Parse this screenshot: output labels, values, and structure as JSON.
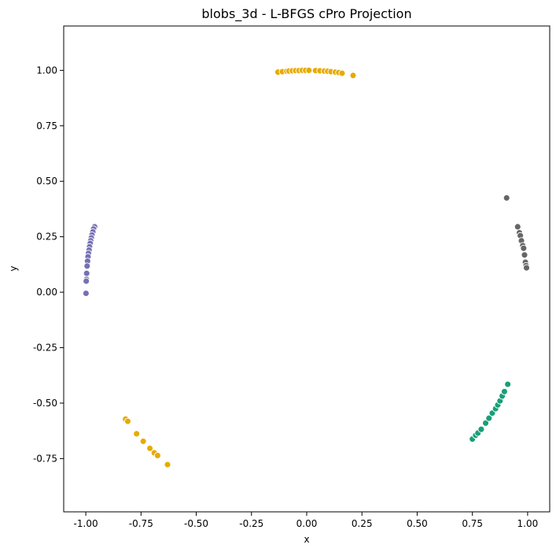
{
  "chart_data": {
    "type": "scatter",
    "title": "blobs_3d - L-BFGS cPro Projection",
    "xlabel": "x",
    "ylabel": "y",
    "xlim": [
      -1.1,
      1.1
    ],
    "ylim": [
      -0.99,
      1.2
    ],
    "xticks": [
      "-1.00",
      "-0.75",
      "-0.50",
      "-0.25",
      "0.00",
      "0.25",
      "0.50",
      "0.75",
      "1.00"
    ],
    "xtick_values": [
      -1.0,
      -0.75,
      -0.5,
      -0.25,
      0.0,
      0.25,
      0.5,
      0.75,
      1.0
    ],
    "yticks": [
      "-0.75",
      "-0.50",
      "-0.25",
      "0.00",
      "0.25",
      "0.50",
      "0.75",
      "1.00"
    ],
    "ytick_values": [
      -0.75,
      -0.5,
      -0.25,
      0.0,
      0.25,
      0.5,
      0.75,
      1.0
    ],
    "grid": false,
    "legend": "none",
    "series": [
      {
        "color": "#e6ab02",
        "points": [
          [
            -0.13,
            0.992
          ],
          [
            -0.11,
            0.994
          ],
          [
            -0.09,
            0.996
          ],
          [
            -0.08,
            0.997
          ],
          [
            -0.065,
            0.998
          ],
          [
            -0.05,
            0.999
          ],
          [
            -0.035,
            0.999
          ],
          [
            -0.02,
            1.0
          ],
          [
            -0.005,
            1.0
          ],
          [
            0.01,
            1.0
          ],
          [
            0.04,
            0.999
          ],
          [
            0.06,
            0.998
          ],
          [
            0.08,
            0.997
          ],
          [
            0.095,
            0.996
          ],
          [
            0.11,
            0.994
          ],
          [
            0.13,
            0.992
          ],
          [
            0.145,
            0.99
          ],
          [
            0.16,
            0.987
          ],
          [
            0.21,
            0.977
          ]
        ]
      },
      {
        "color": "#e6ab02",
        "points": [
          [
            -0.82,
            -0.572
          ],
          [
            -0.81,
            -0.582
          ],
          [
            -0.77,
            -0.638
          ],
          [
            -0.74,
            -0.672
          ],
          [
            -0.71,
            -0.704
          ],
          [
            -0.69,
            -0.724
          ],
          [
            -0.675,
            -0.736
          ],
          [
            -0.63,
            -0.777
          ]
        ]
      },
      {
        "color": "#7570b3",
        "points": [
          [
            -0.96,
            0.295
          ],
          [
            -0.965,
            0.285
          ],
          [
            -0.968,
            0.272
          ],
          [
            -0.972,
            0.258
          ],
          [
            -0.975,
            0.245
          ],
          [
            -0.978,
            0.232
          ],
          [
            -0.98,
            0.22
          ],
          [
            -0.983,
            0.205
          ],
          [
            -0.985,
            0.19
          ],
          [
            -0.988,
            0.175
          ],
          [
            -0.99,
            0.16
          ],
          [
            -0.992,
            0.14
          ],
          [
            -0.994,
            0.118
          ],
          [
            -0.996,
            0.085
          ],
          [
            -0.997,
            0.058
          ],
          [
            -0.998,
            0.05
          ],
          [
            -0.999,
            -0.005
          ]
        ]
      },
      {
        "color": "#666666",
        "points": [
          [
            0.905,
            0.425
          ],
          [
            0.955,
            0.295
          ],
          [
            0.963,
            0.268
          ],
          [
            0.967,
            0.255
          ],
          [
            0.972,
            0.232
          ],
          [
            0.978,
            0.21
          ],
          [
            0.982,
            0.198
          ],
          [
            0.986,
            0.168
          ],
          [
            0.99,
            0.135
          ],
          [
            0.993,
            0.12
          ],
          [
            0.995,
            0.11
          ]
        ]
      },
      {
        "color": "#1b9e77",
        "points": [
          [
            0.75,
            -0.662
          ],
          [
            0.765,
            -0.645
          ],
          [
            0.775,
            -0.635
          ],
          [
            0.79,
            -0.618
          ],
          [
            0.81,
            -0.59
          ],
          [
            0.825,
            -0.568
          ],
          [
            0.84,
            -0.545
          ],
          [
            0.855,
            -0.525
          ],
          [
            0.865,
            -0.508
          ],
          [
            0.875,
            -0.49
          ],
          [
            0.885,
            -0.468
          ],
          [
            0.895,
            -0.448
          ],
          [
            0.91,
            -0.415
          ]
        ]
      }
    ]
  }
}
